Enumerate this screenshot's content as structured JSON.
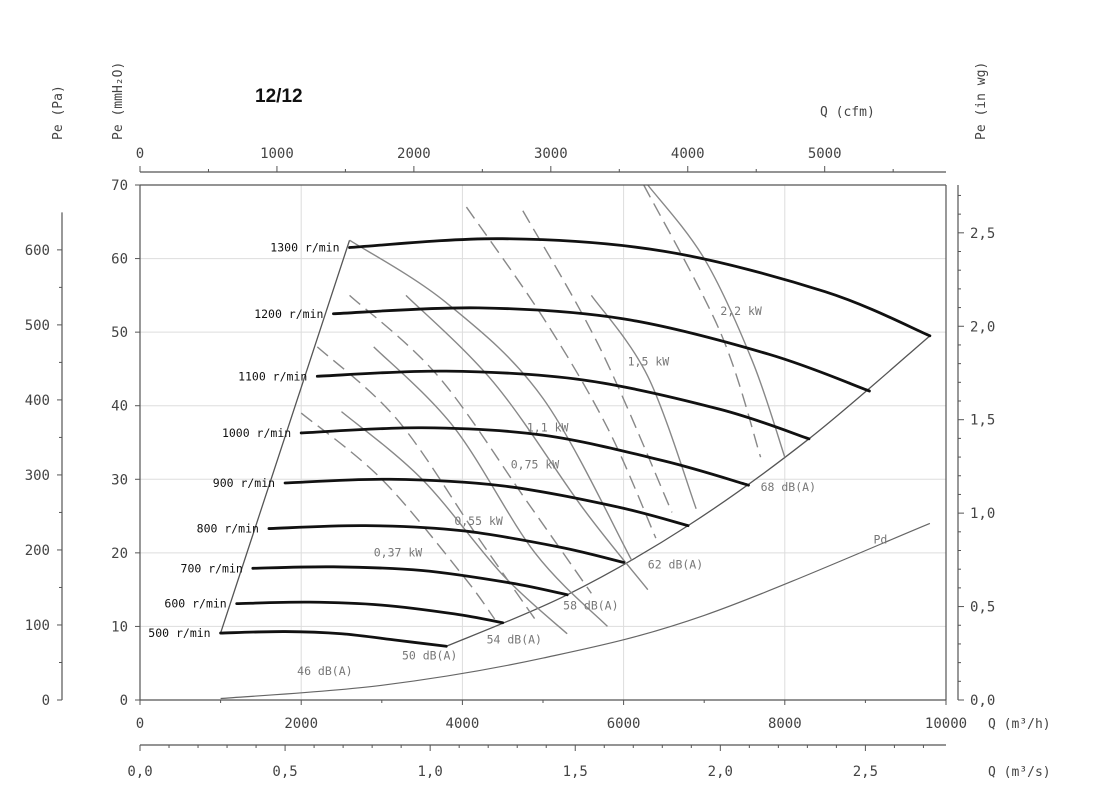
{
  "title": "12/12",
  "chart_data": {
    "type": "line",
    "title": "12/12",
    "x_primary": {
      "label": "Q (m³/h)",
      "range": [
        0,
        10000
      ],
      "ticks": [
        0,
        2000,
        4000,
        6000,
        8000,
        10000
      ]
    },
    "x_cfm": {
      "label": "Q (cfm)",
      "range": [
        0,
        5886
      ],
      "ticks": [
        0,
        1000,
        2000,
        3000,
        4000,
        5000
      ]
    },
    "x_m3s": {
      "label": "Q (m³/s)",
      "range": [
        0,
        2.778
      ],
      "ticks": [
        "0,0",
        "0,5",
        "1,0",
        "1,5",
        "2,0",
        "2,5"
      ]
    },
    "y_primary": {
      "label": "Pe (mmH₂O)",
      "range": [
        0,
        70
      ],
      "ticks": [
        0,
        10,
        20,
        30,
        40,
        50,
        60,
        70
      ]
    },
    "y_pa": {
      "label": "Pe (Pa)",
      "ticks": [
        0,
        100,
        200,
        300,
        400,
        500,
        600
      ]
    },
    "y_inwg": {
      "label": "Pe (in wg)",
      "ticks": [
        "0,0",
        "0,5",
        "1,0",
        "1,5",
        "2,0",
        "2,5"
      ]
    },
    "grid": true,
    "speed_curves": [
      {
        "name": "1300 r/min",
        "x": [
          2600,
          4500,
          6500,
          8500,
          9800
        ],
        "y": [
          61.5,
          62.7,
          61,
          55.5,
          49.5
        ]
      },
      {
        "name": "1200 r/min",
        "x": [
          2400,
          4200,
          6000,
          7800,
          9050
        ],
        "y": [
          52.5,
          53.3,
          51.8,
          47,
          42
        ]
      },
      {
        "name": "1100 r/min",
        "x": [
          2200,
          3800,
          5500,
          7200,
          8300
        ],
        "y": [
          44,
          44.7,
          43.5,
          39.5,
          35.5
        ]
      },
      {
        "name": "1000 r/min",
        "x": [
          2000,
          3500,
          5000,
          6500,
          7550
        ],
        "y": [
          36.3,
          37,
          36,
          32.5,
          29.2
        ]
      },
      {
        "name": "900 r/min",
        "x": [
          1800,
          3100,
          4500,
          5900,
          6800
        ],
        "y": [
          29.5,
          30,
          29.1,
          26.3,
          23.7
        ]
      },
      {
        "name": "800 r/min",
        "x": [
          1600,
          2800,
          4000,
          5200,
          6000
        ],
        "y": [
          23.3,
          23.7,
          23,
          20.8,
          18.7
        ]
      },
      {
        "name": "700 r/min",
        "x": [
          1400,
          2400,
          3500,
          4600,
          5300
        ],
        "y": [
          17.9,
          18.1,
          17.6,
          15.9,
          14.3
        ]
      },
      {
        "name": "600 r/min",
        "x": [
          1200,
          2100,
          3000,
          3900,
          4500
        ],
        "y": [
          13.1,
          13.3,
          12.9,
          11.7,
          10.5
        ]
      },
      {
        "name": "500 r/min",
        "x": [
          1000,
          1800,
          2500,
          3200,
          3800
        ],
        "y": [
          9.1,
          9.3,
          9,
          8.1,
          7.3
        ]
      }
    ],
    "power_curves": [
      {
        "name": "0,37 kW",
        "label_xy": [
          2900,
          19.5
        ],
        "dashed_x": [
          2000,
          3000,
          4000,
          4400
        ],
        "dashed_y": [
          39,
          30,
          17,
          11
        ],
        "solid_x": [
          2500,
          3500,
          4500,
          5300
        ],
        "solid_y": [
          39.2,
          30,
          17,
          9
        ]
      },
      {
        "name": "0,55 kW",
        "label_xy": [
          3900,
          23.8
        ],
        "dashed_x": [
          2200,
          3200,
          4200,
          4900
        ],
        "dashed_y": [
          48,
          38,
          22,
          11
        ],
        "solid_x": [
          2900,
          3900,
          4900,
          5800
        ],
        "solid_y": [
          48,
          37,
          20,
          10
        ]
      },
      {
        "name": "0,75 kW",
        "label_xy": [
          4600,
          31.5
        ],
        "dashed_x": [
          2600,
          3700,
          4800,
          5600
        ],
        "dashed_y": [
          55,
          44,
          27,
          14.5
        ],
        "solid_x": [
          3300,
          4400,
          5500,
          6300
        ],
        "solid_y": [
          55,
          43,
          26,
          15
        ]
      },
      {
        "name": "1,1 kW",
        "label_xy": [
          4800,
          36.5
        ],
        "dashed_x": [
          4050,
          5000,
          5800,
          6400
        ],
        "dashed_y": [
          67,
          52,
          37,
          22
        ],
        "solid_x": [
          2600,
          3800,
          5000,
          6100
        ],
        "solid_y": [
          62.5,
          54,
          41,
          19
        ]
      },
      {
        "name": "1,5 kW",
        "label_xy": [
          6050,
          45.5
        ],
        "dashed_x": [
          4750,
          5700,
          6600
        ],
        "dashed_y": [
          66.5,
          48,
          25.5
        ],
        "solid_x": [
          5600,
          6300,
          6900
        ],
        "solid_y": [
          55,
          44,
          26
        ]
      },
      {
        "name": "2,2 kW",
        "label_xy": [
          7200,
          52.3
        ],
        "dashed_x": [
          6250,
          7200,
          7700
        ],
        "dashed_y": [
          70,
          50,
          33
        ],
        "solid_x": [
          6300,
          7000,
          7600,
          8000
        ],
        "solid_y": [
          70,
          60,
          46,
          33
        ]
      }
    ],
    "noise_labels": [
      {
        "name": "46 dB(A)",
        "label_xy": [
          1950,
          3.4
        ]
      },
      {
        "name": "50 dB(A)",
        "label_xy": [
          3250,
          5.5
        ]
      },
      {
        "name": "54 dB(A)",
        "label_xy": [
          4300,
          7.7
        ]
      },
      {
        "name": "58 dB(A)",
        "label_xy": [
          5250,
          12.3
        ]
      },
      {
        "name": "62 dB(A)",
        "label_xy": [
          6300,
          17.9
        ]
      },
      {
        "name": "68 dB(A)",
        "label_xy": [
          7700,
          28.4
        ]
      }
    ],
    "pd_curve": {
      "name": "Pd",
      "x": [
        1000,
        3000,
        5000,
        7000,
        9800
      ],
      "y": [
        0.2,
        2,
        5.7,
        11.5,
        24
      ]
    },
    "envelope_left": {
      "x": [
        1000,
        2600
      ],
      "y": [
        9.1,
        62.5
      ]
    },
    "envelope_right": {
      "x": [
        3800,
        5300,
        6800,
        8300,
        9800
      ],
      "y": [
        7.3,
        14.3,
        23.7,
        35.5,
        49.5
      ]
    }
  },
  "colors": {
    "heavy": "#111111",
    "power": "#888888",
    "grid": "#dddddd",
    "axis": "#555555"
  }
}
